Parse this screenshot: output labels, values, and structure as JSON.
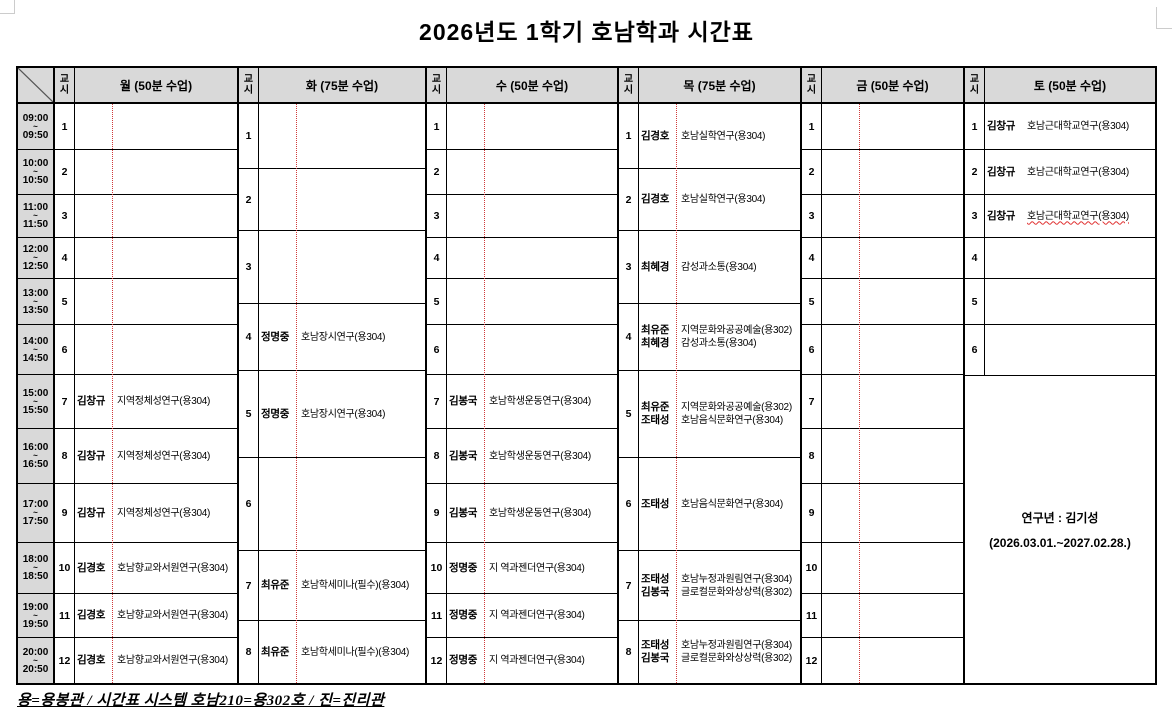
{
  "title": "2026년도 1학기 호남학과 시간표",
  "labels": {
    "period": "교\n시",
    "tilde": "~"
  },
  "colors": {
    "accent_red": "#d03a3a",
    "header_bg": "#d9d9d9",
    "grid": "#000000"
  },
  "times": [
    {
      "start": "09:00",
      "end": "09:50"
    },
    {
      "start": "10:00",
      "end": "10:50"
    },
    {
      "start": "11:00",
      "end": "11:50"
    },
    {
      "start": "12:00",
      "end": "12:50"
    },
    {
      "start": "13:00",
      "end": "13:50"
    },
    {
      "start": "14:00",
      "end": "14:50"
    },
    {
      "start": "15:00",
      "end": "15:50"
    },
    {
      "start": "16:00",
      "end": "16:50"
    },
    {
      "start": "17:00",
      "end": "17:50"
    },
    {
      "start": "18:00",
      "end": "18:50"
    },
    {
      "start": "19:00",
      "end": "19:50"
    },
    {
      "start": "20:00",
      "end": "20:50"
    }
  ],
  "days": [
    {
      "name": "월 (50분 수업)",
      "periods": 12,
      "merged": false,
      "cells": [
        {
          "p": "1",
          "entries": []
        },
        {
          "p": "2",
          "entries": []
        },
        {
          "p": "3",
          "entries": []
        },
        {
          "p": "4",
          "entries": []
        },
        {
          "p": "5",
          "entries": []
        },
        {
          "p": "6",
          "entries": []
        },
        {
          "p": "7",
          "entries": [
            {
              "prof": "김창규",
              "course": "지역정체성연구(용304)"
            }
          ]
        },
        {
          "p": "8",
          "entries": [
            {
              "prof": "김창규",
              "course": "지역정체성연구(용304)"
            }
          ]
        },
        {
          "p": "9",
          "entries": [
            {
              "prof": "김창규",
              "course": "지역정체성연구(용304)"
            }
          ]
        },
        {
          "p": "10",
          "entries": [
            {
              "prof": "김경호",
              "course": "호남향교와서원연구(용304)"
            }
          ]
        },
        {
          "p": "11",
          "entries": [
            {
              "prof": "김경호",
              "course": "호남향교와서원연구(용304)"
            }
          ]
        },
        {
          "p": "12",
          "entries": [
            {
              "prof": "김경호",
              "course": "호남향교와서원연구(용304)"
            }
          ]
        }
      ]
    },
    {
      "name": "화 (75분 수업)",
      "periods": 8,
      "merged": false,
      "cells": [
        {
          "p": "1",
          "entries": []
        },
        {
          "p": "2",
          "entries": []
        },
        {
          "p": "3",
          "entries": []
        },
        {
          "p": "4",
          "entries": [
            {
              "prof": "정명중",
              "course": "호남장시연구(용304)"
            }
          ]
        },
        {
          "p": "5",
          "entries": [
            {
              "prof": "정명중",
              "course": "호남장시연구(용304)"
            }
          ]
        },
        {
          "p": "6",
          "entries": []
        },
        {
          "p": "7",
          "entries": [
            {
              "prof": "최유준",
              "course": "호남학세미나(필수)(용304)"
            }
          ]
        },
        {
          "p": "8",
          "entries": [
            {
              "prof": "최유준",
              "course": "호남학세미나(필수)(용304)"
            }
          ]
        }
      ]
    },
    {
      "name": "수 (50분 수업)",
      "periods": 12,
      "merged": false,
      "cells": [
        {
          "p": "1",
          "entries": []
        },
        {
          "p": "2",
          "entries": []
        },
        {
          "p": "3",
          "entries": []
        },
        {
          "p": "4",
          "entries": []
        },
        {
          "p": "5",
          "entries": []
        },
        {
          "p": "6",
          "entries": []
        },
        {
          "p": "7",
          "entries": [
            {
              "prof": "김봉국",
              "course": "호남학생운동연구(용304)"
            }
          ]
        },
        {
          "p": "8",
          "entries": [
            {
              "prof": "김봉국",
              "course": "호남학생운동연구(용304)"
            }
          ]
        },
        {
          "p": "9",
          "entries": [
            {
              "prof": "김봉국",
              "course": "호남학생운동연구(용304)"
            }
          ]
        },
        {
          "p": "10",
          "entries": [
            {
              "prof": "정명중",
              "course": "지 역과젠더연구(용304)"
            }
          ]
        },
        {
          "p": "11",
          "entries": [
            {
              "prof": "정명중",
              "course": "지 역과젠더연구(용304)"
            }
          ]
        },
        {
          "p": "12",
          "entries": [
            {
              "prof": "정명중",
              "course": "지 역과젠더연구(용304)"
            }
          ]
        }
      ]
    },
    {
      "name": "목 (75분 수업)",
      "periods": 8,
      "merged": false,
      "cells": [
        {
          "p": "1",
          "entries": [
            {
              "prof": "김경호",
              "course": "호남실학연구(용304)"
            }
          ]
        },
        {
          "p": "2",
          "entries": [
            {
              "prof": "김경호",
              "course": "호남실학연구(용304)"
            }
          ]
        },
        {
          "p": "3",
          "entries": [
            {
              "prof": "최혜경",
              "course": "감성과소통(용304)"
            }
          ]
        },
        {
          "p": "4",
          "entries": [
            {
              "prof": "최유준",
              "course": "지역문화와공공예술(용302)"
            },
            {
              "prof": "최혜경",
              "course": "감성과소통(용304)"
            }
          ]
        },
        {
          "p": "5",
          "entries": [
            {
              "prof": "최유준",
              "course": "지역문화와공공예술(용302)"
            },
            {
              "prof": "조태성",
              "course": "호남음식문화연구(용304)"
            }
          ]
        },
        {
          "p": "6",
          "entries": [
            {
              "prof": "조태성",
              "course": "호남음식문화연구(용304)"
            }
          ]
        },
        {
          "p": "7",
          "entries": [
            {
              "prof": "조태성",
              "course": "호남누정과원림연구(용304)"
            },
            {
              "prof": "김봉국",
              "course": "글로컬문화와상상력(용302)"
            }
          ]
        },
        {
          "p": "8",
          "entries": [
            {
              "prof": "조태성",
              "course": "호남누정과원림연구(용304)"
            },
            {
              "prof": "김봉국",
              "course": "글로컬문화와상상력(용302)"
            }
          ]
        }
      ]
    },
    {
      "name": "금 (50분 수업)",
      "periods": 12,
      "merged": false,
      "cells": [
        {
          "p": "1",
          "entries": []
        },
        {
          "p": "2",
          "entries": []
        },
        {
          "p": "3",
          "entries": []
        },
        {
          "p": "4",
          "entries": []
        },
        {
          "p": "5",
          "entries": []
        },
        {
          "p": "6",
          "entries": []
        },
        {
          "p": "7",
          "entries": []
        },
        {
          "p": "8",
          "entries": []
        },
        {
          "p": "9",
          "entries": []
        },
        {
          "p": "10",
          "entries": []
        },
        {
          "p": "11",
          "entries": []
        },
        {
          "p": "12",
          "entries": []
        }
      ]
    },
    {
      "name": "토 (50분 수업)",
      "periods": 6,
      "merged": true,
      "cells": [
        {
          "p": "1",
          "entries": [
            {
              "prof": "김창규",
              "course": "호남근대학교연구(용304)"
            }
          ]
        },
        {
          "p": "2",
          "entries": [
            {
              "prof": "김창규",
              "course": "호남근대학교연구(용304)"
            }
          ]
        },
        {
          "p": "3",
          "entries": [
            {
              "prof": "김창규",
              "course": "호남근대학교연구(용304)",
              "annotated": true
            }
          ]
        },
        {
          "p": "4",
          "entries": []
        },
        {
          "p": "5",
          "entries": []
        },
        {
          "p": "6",
          "entries": []
        }
      ]
    }
  ],
  "research_note": {
    "line1": "연구년 : 김기성",
    "line2": "(2026.03.01.~2027.02.28.)"
  },
  "footer": "용=용봉관 / 시간표 시스템 호남210=용302호 / 진=진리관"
}
